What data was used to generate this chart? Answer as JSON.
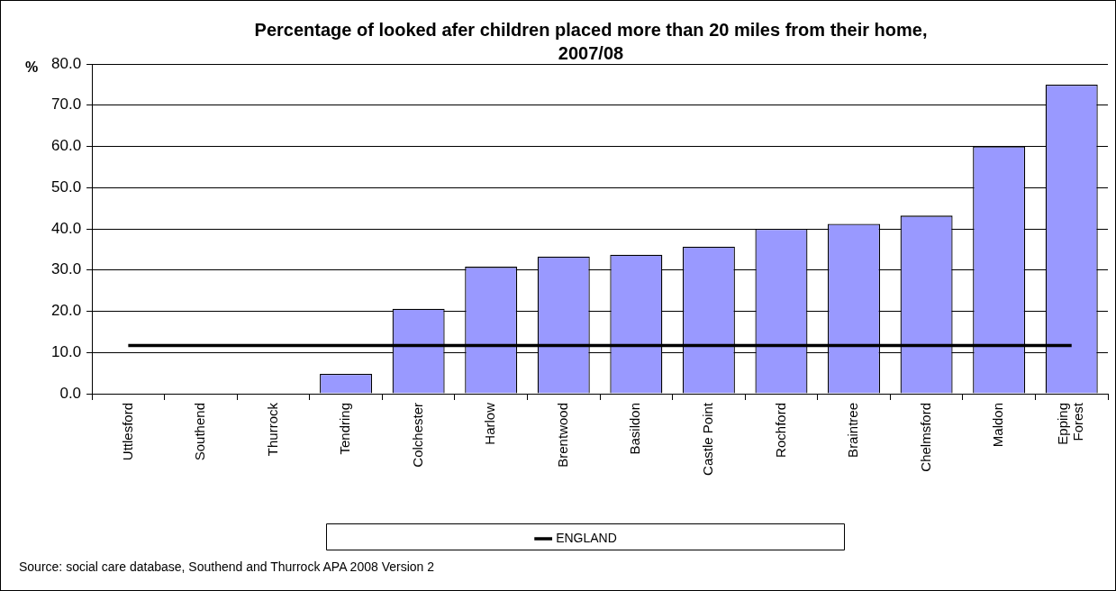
{
  "chart_data": {
    "type": "bar",
    "title": "Percentage of looked afer children placed more than 20 miles from their home, 2007/08",
    "ylabel": "%",
    "categories": [
      "Uttlesford",
      "Southend",
      "Thurrock",
      "Tendring",
      "Colchester",
      "Harlow",
      "Brentwood",
      "Basildon",
      "Castle Point",
      "Rochford",
      "Braintree",
      "Chelmsford",
      "Maldon",
      "Epping Forest"
    ],
    "series": [
      {
        "color": "#9999ff",
        "values": [
          0,
          0,
          0,
          4.8,
          20.6,
          30.8,
          33.3,
          33.7,
          35.7,
          40.0,
          41.2,
          43.2,
          60.0,
          75.0
        ]
      },
      {
        "name": "ENGLAND",
        "type": "line",
        "color": "#000000",
        "values": [
          11.7,
          11.7,
          11.7,
          11.7,
          11.7,
          11.7,
          11.7,
          11.7,
          11.7,
          11.7,
          11.7,
          11.7,
          11.7,
          11.7
        ]
      }
    ],
    "ylim": [
      0,
      80
    ],
    "yticks": [
      {
        "value": 0,
        "label": "0.0"
      },
      {
        "value": 10,
        "label": "10.0"
      },
      {
        "value": 20,
        "label": "20.0"
      },
      {
        "value": 30,
        "label": "30.0"
      },
      {
        "value": 40,
        "label": "40.0"
      },
      {
        "value": 50,
        "label": "50.0"
      },
      {
        "value": 60,
        "label": "60.0"
      },
      {
        "value": 70,
        "label": "70.0"
      },
      {
        "value": 80,
        "label": "80.0"
      }
    ],
    "grid": "y",
    "legend": "bottom",
    "marker": "none",
    "annotations": [
      "Source: social care database, Southend and Thurrock APA 2008 Version 2"
    ]
  }
}
